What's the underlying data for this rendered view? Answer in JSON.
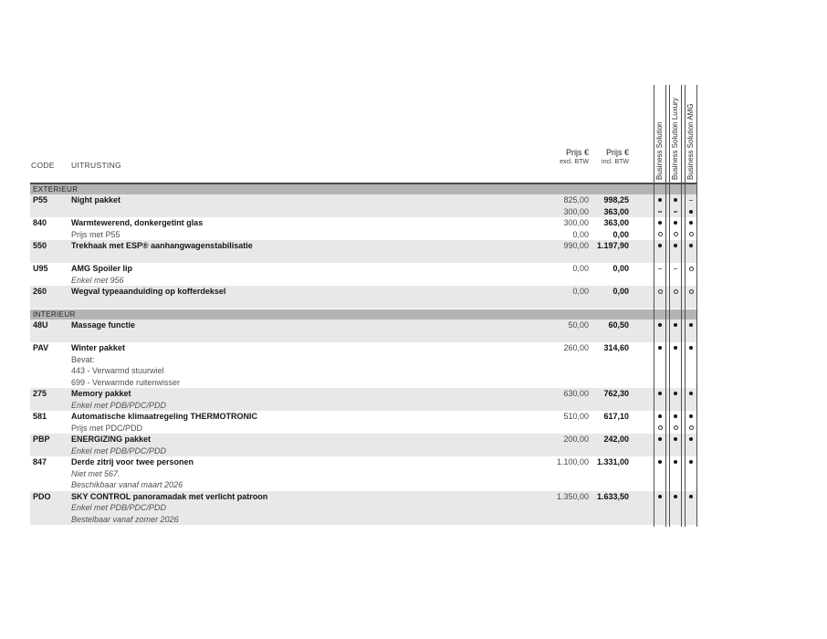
{
  "header": {
    "code_label": "CODE",
    "uitrusting_label": "UITRUSTING",
    "price_excl_title": "Prijs €",
    "price_excl_sub": "excl. BTW",
    "price_incl_title": "Prijs €",
    "price_incl_sub": "incl. BTW",
    "model_columns": [
      "Business Solution",
      "Business Solution Luxury",
      "Business Solution AMG"
    ]
  },
  "colors": {
    "band": "#b4b4b4",
    "row_shade": "#e8e8e8",
    "rule_line": "#4a4a4a",
    "grid_line": "#4f4f4f"
  },
  "sections": [
    {
      "title": "EXTERIEUR",
      "rows": [
        {
          "code": "P55",
          "shaded": true,
          "lines": [
            {
              "text": "Night pakket",
              "style": "bold",
              "excl": "825,00",
              "incl": "998,25",
              "marks": [
                "dot",
                "dot",
                "dash"
              ]
            },
            {
              "text": "",
              "style": "plain",
              "excl": "300,00",
              "incl": "363,00",
              "marks": [
                "dash",
                "dash",
                "dot"
              ]
            }
          ]
        },
        {
          "code": "840",
          "shaded": false,
          "lines": [
            {
              "text": "Warmtewerend, donkergetint glas",
              "style": "bold",
              "excl": "300,00",
              "incl": "363,00",
              "marks": [
                "dot",
                "dot",
                "dot"
              ]
            },
            {
              "text": "Prijs met P55",
              "style": "plain",
              "excl": "0,00",
              "incl": "0,00",
              "marks": [
                "circle",
                "circle",
                "circle"
              ]
            }
          ]
        },
        {
          "code": "550",
          "shaded": true,
          "lines": [
            {
              "text": "Trekhaak met ESP® aanhangwagenstabilisatie",
              "style": "bold",
              "excl": "990,00",
              "incl": "1.197,90",
              "marks": [
                "dot",
                "dot",
                "dot"
              ]
            },
            {
              "text": "",
              "style": "plain",
              "excl": "",
              "incl": "",
              "marks": []
            }
          ]
        },
        {
          "code": "U95",
          "shaded": false,
          "lines": [
            {
              "text": "AMG Spoiler lip",
              "style": "bold",
              "excl": "0,00",
              "incl": "0,00",
              "marks": [
                "dash",
                "dash",
                "circle"
              ]
            },
            {
              "text": "Enkel met 956",
              "style": "italic",
              "excl": "",
              "incl": "",
              "marks": []
            }
          ]
        },
        {
          "code": "260",
          "shaded": true,
          "lines": [
            {
              "text": "Wegval typeaanduiding op kofferdeksel",
              "style": "bold",
              "excl": "0,00",
              "incl": "0,00",
              "marks": [
                "circle",
                "circle",
                "circle"
              ]
            },
            {
              "text": "",
              "style": "plain",
              "excl": "",
              "incl": "",
              "marks": []
            }
          ]
        }
      ]
    },
    {
      "title": "INTERIEUR",
      "rows": [
        {
          "code": "48U",
          "shaded": true,
          "lines": [
            {
              "text": "Massage functie",
              "style": "bold",
              "excl": "50,00",
              "incl": "60,50",
              "marks": [
                "dot",
                "dot",
                "dot"
              ]
            },
            {
              "text": "",
              "style": "plain",
              "excl": "",
              "incl": "",
              "marks": []
            }
          ]
        },
        {
          "code": "PAV",
          "shaded": false,
          "lines": [
            {
              "text": "Winter pakket",
              "style": "bold",
              "excl": "260,00",
              "incl": "314,60",
              "marks": [
                "dot",
                "dot",
                "dot"
              ]
            },
            {
              "text": "Bevat:",
              "style": "plain",
              "excl": "",
              "incl": "",
              "marks": []
            },
            {
              "text": "443 - Verwarmd stuurwiel",
              "style": "plain",
              "excl": "",
              "incl": "",
              "marks": []
            },
            {
              "text": "699 - Verwarmde ruitenwisser",
              "style": "plain",
              "excl": "",
              "incl": "",
              "marks": []
            }
          ]
        },
        {
          "code": "275",
          "shaded": true,
          "lines": [
            {
              "text": "Memory pakket",
              "style": "bold",
              "excl": "630,00",
              "incl": "762,30",
              "marks": [
                "dot",
                "dot",
                "dot"
              ]
            },
            {
              "text": "Enkel met PDB/PDC/PDD",
              "style": "italic",
              "excl": "",
              "incl": "",
              "marks": []
            }
          ]
        },
        {
          "code": "581",
          "shaded": false,
          "lines": [
            {
              "text": "Automatische klimaatregeling THERMOTRONIC",
              "style": "bold",
              "excl": "510,00",
              "incl": "617,10",
              "marks": [
                "dot",
                "dot",
                "dot"
              ]
            },
            {
              "text": "Prijs met PDC/PDD",
              "style": "plain",
              "excl": "",
              "incl": "",
              "marks": [
                "circle",
                "circle",
                "circle"
              ]
            }
          ]
        },
        {
          "code": "PBP",
          "shaded": true,
          "lines": [
            {
              "text": "ENERGIZING pakket",
              "style": "bold",
              "excl": "200,00",
              "incl": "242,00",
              "marks": [
                "dot",
                "dot",
                "dot"
              ]
            },
            {
              "text": "Enkel met PDB/PDC/PDD",
              "style": "italic",
              "excl": "",
              "incl": "",
              "marks": []
            }
          ]
        },
        {
          "code": "847",
          "shaded": false,
          "lines": [
            {
              "text": "Derde zitrij voor twee personen",
              "style": "bold",
              "excl": "1.100,00",
              "incl": "1.331,00",
              "marks": [
                "dot",
                "dot",
                "dot"
              ]
            },
            {
              "text": "Niet met 567.",
              "style": "italic",
              "excl": "",
              "incl": "",
              "marks": []
            },
            {
              "text": "Beschikbaar vanaf maart 2026",
              "style": "italic",
              "excl": "",
              "incl": "",
              "marks": []
            }
          ]
        },
        {
          "code": "PDO",
          "shaded": true,
          "lines": [
            {
              "text": "SKY CONTROL panoramadak met verlicht patroon",
              "style": "bold",
              "excl": "1.350,00",
              "incl": "1.633,50",
              "marks": [
                "dot",
                "dot",
                "dot"
              ]
            },
            {
              "text": "Enkel met PDB/PDC/PDD",
              "style": "italic",
              "excl": "",
              "incl": "",
              "marks": []
            },
            {
              "text": "Bestelbaar vanaf zomer 2026",
              "style": "italic",
              "excl": "",
              "incl": "",
              "marks": []
            }
          ]
        }
      ]
    }
  ]
}
